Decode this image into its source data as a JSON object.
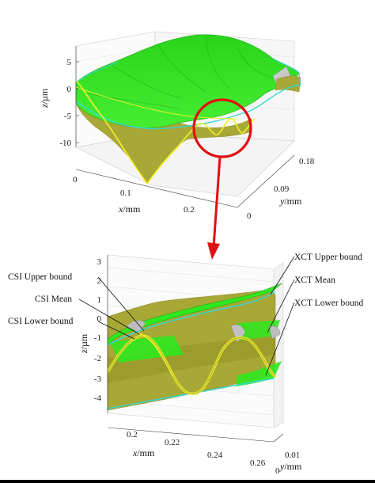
{
  "top_plot": {
    "z_label_italic": "z",
    "z_label_unit": "/µm",
    "z_ticks": [
      "5",
      "0",
      "-5",
      "-10"
    ],
    "x_label_italic": "x",
    "x_label_unit": "/mm",
    "x_ticks": [
      "0",
      "0.1",
      "0.2"
    ],
    "y_label_italic": "y",
    "y_label_unit": "/mm",
    "y_ticks": [
      "0.18",
      "0.09",
      "0"
    ]
  },
  "bottom_plot": {
    "z_label_italic": "z",
    "z_label_unit": "/µm",
    "z_ticks": [
      "3",
      "2",
      "1",
      "0",
      "-1",
      "-2",
      "-3",
      "-4"
    ],
    "x_label_italic": "x",
    "x_label_unit": "/mm",
    "x_ticks": [
      "0.2",
      "0.22",
      "0.24",
      "0.26"
    ],
    "y_label_italic": "y",
    "y_label_unit": "/mm",
    "y_ticks": [
      "0.01",
      "0"
    ]
  },
  "labels": {
    "csi_upper": "CSI Upper bound",
    "csi_mean": "CSI Mean",
    "csi_lower": "CSI Lower bound",
    "xct_upper": "XCT Upper bound",
    "xct_mean": "XCT Mean",
    "xct_lower": "XCT Lower bound"
  },
  "colors": {
    "xct_surface": "#2ee81f",
    "xct_edge": "#36d8d0",
    "csi_surface": "#a8a836",
    "csi_line": "#f4f226",
    "gray_surface": "#b9b9b9",
    "highlight": "#e01010"
  }
}
